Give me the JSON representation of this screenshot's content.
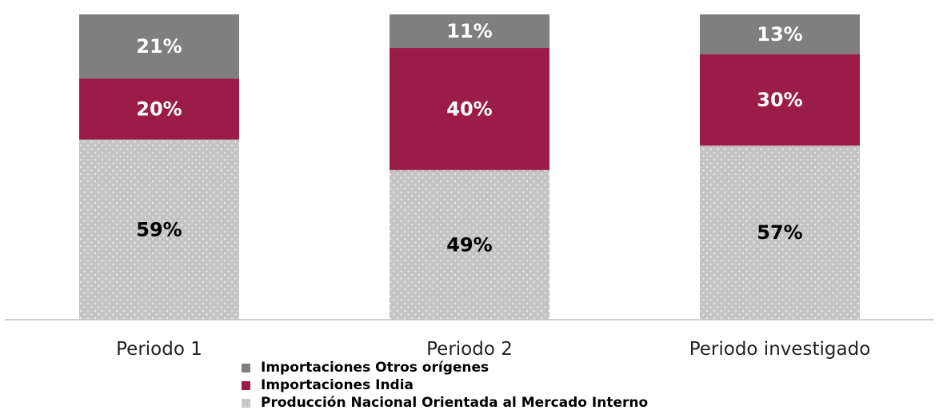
{
  "chart_data": {
    "type": "bar",
    "stacked": true,
    "percent_stacked": true,
    "title": "",
    "xlabel": "",
    "ylabel": "",
    "ylim": [
      0,
      100
    ],
    "grid": false,
    "legend_position": "bottom",
    "categories": [
      "Periodo 1",
      "Periodo 2",
      "Periodo investigado"
    ],
    "series": [
      {
        "name": "Producción Nacional Orientada al Mercado Interno",
        "values": [
          59,
          49,
          57
        ],
        "labels": [
          "59%",
          "49%",
          "57%"
        ],
        "color": "#c7c7c7",
        "pattern": "dotted",
        "label_color": "#000000"
      },
      {
        "name": "Importaciones India",
        "values": [
          20,
          40,
          30
        ],
        "labels": [
          "20%",
          "40%",
          "30%"
        ],
        "color": "#9b1c48",
        "label_color": "#ffffff"
      },
      {
        "name": "Importaciones Otros orígenes",
        "values": [
          21,
          11,
          13
        ],
        "labels": [
          "21%",
          "11%",
          "13%"
        ],
        "color": "#7f7f7f",
        "label_color": "#ffffff"
      }
    ]
  },
  "legend_order": [
    2,
    1,
    0
  ]
}
